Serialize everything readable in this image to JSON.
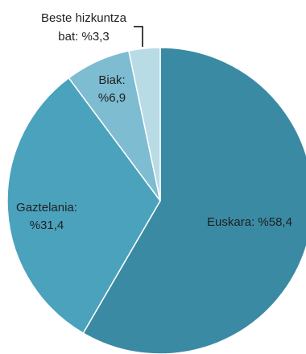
{
  "chart_data": {
    "type": "pie",
    "title": "",
    "slices": [
      {
        "label_lines": [
          "Euskara: %58,4"
        ],
        "value": 58.4,
        "color": "#3a8aa3"
      },
      {
        "label_lines": [
          "Gaztelania:",
          "%31,4"
        ],
        "value": 31.4,
        "color": "#4ba2bc"
      },
      {
        "label_lines": [
          "Biak:",
          "%6,9"
        ],
        "value": 6.9,
        "color": "#7dbcd1"
      },
      {
        "label_lines": [
          "Beste hizkuntza",
          "bat: %3,3"
        ],
        "value": 3.3,
        "color": "#b9dbe6"
      }
    ],
    "start_angle": "12 o'clock",
    "direction": "clockwise",
    "legend": "none"
  }
}
